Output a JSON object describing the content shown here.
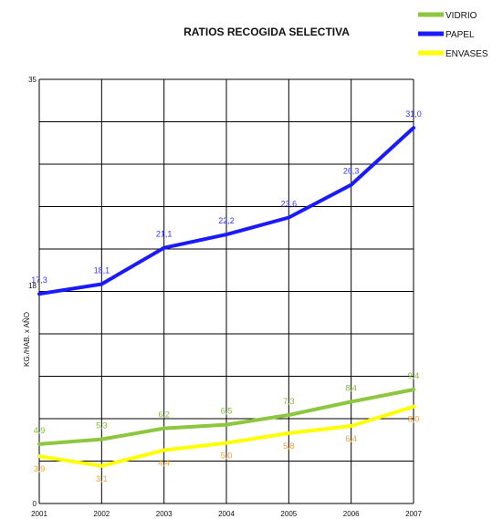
{
  "chart_data": {
    "type": "line",
    "title": "RATIOS RECOGIDA SELECTIVA",
    "ylabel": "KG./HAB. x AÑO",
    "xlabel": "",
    "categories": [
      "2001",
      "2002",
      "2003",
      "2004",
      "2005",
      "2006",
      "2007"
    ],
    "y_ticks": [
      "0",
      "18",
      "35"
    ],
    "ylim": [
      0,
      35
    ],
    "grid": true,
    "legend_position": "top-right",
    "series": [
      {
        "name": "VIDRIO",
        "color": "#8dc63f",
        "label_color": "#7dbb2f",
        "values": [
          4.9,
          5.3,
          6.2,
          6.5,
          7.3,
          8.4,
          9.4
        ],
        "labels": [
          "4,9",
          "5,3",
          "6,2",
          "6,5",
          "7,3",
          "8,4",
          "9,4"
        ]
      },
      {
        "name": "PAPEL",
        "color": "#1a1aff",
        "label_color": "#3333ff",
        "values": [
          17.3,
          18.1,
          21.1,
          22.2,
          23.6,
          26.3,
          31.0
        ],
        "labels": [
          "17,3",
          "18,1",
          "21,1",
          "22,2",
          "23,6",
          "26,3",
          "31,0"
        ]
      },
      {
        "name": "ENVASES",
        "color": "#ffff00",
        "label_color": "#f4a12a",
        "values": [
          3.9,
          3.1,
          4.4,
          5.0,
          5.8,
          6.4,
          8.0
        ],
        "labels": [
          "3,9",
          "3,1",
          "4,4",
          "5,0",
          "5,8",
          "6,4",
          "8,0"
        ]
      }
    ]
  }
}
